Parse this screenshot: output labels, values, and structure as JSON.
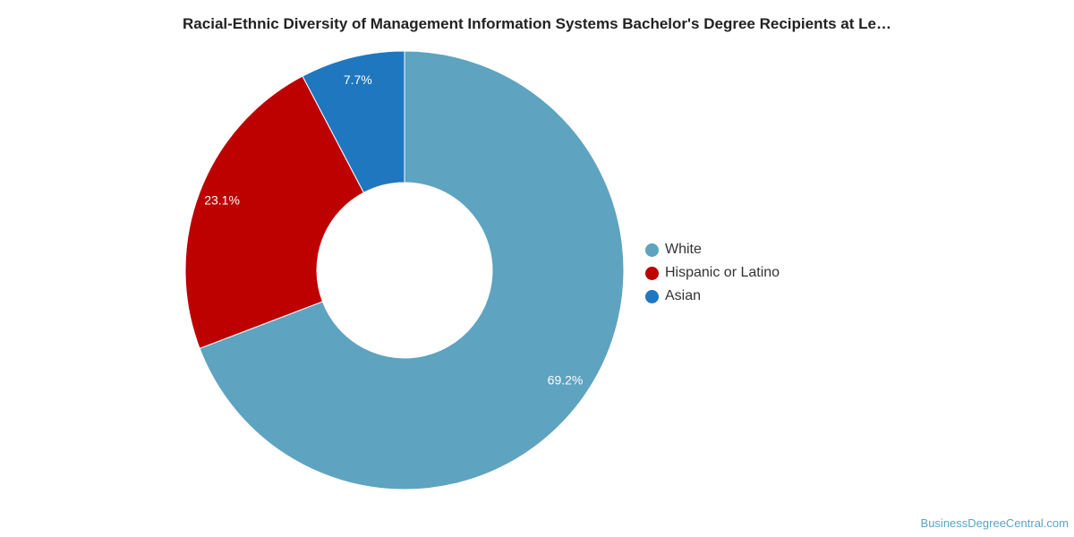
{
  "chart_data": {
    "type": "pie",
    "variant": "donut",
    "title": "Racial-Ethnic Diversity of Management Information Systems Bachelor's Degree Recipients at Le…",
    "categories": [
      "White",
      "Hispanic or Latino",
      "Asian"
    ],
    "values": [
      69.2,
      23.1,
      7.7
    ],
    "labels": [
      "69.2%",
      "23.1%",
      "7.7%"
    ],
    "colors": [
      "#5ea3c0",
      "#bd0000",
      "#1f77c0"
    ],
    "legend_position": "right"
  },
  "source": "BusinessDegreeCentral.com"
}
